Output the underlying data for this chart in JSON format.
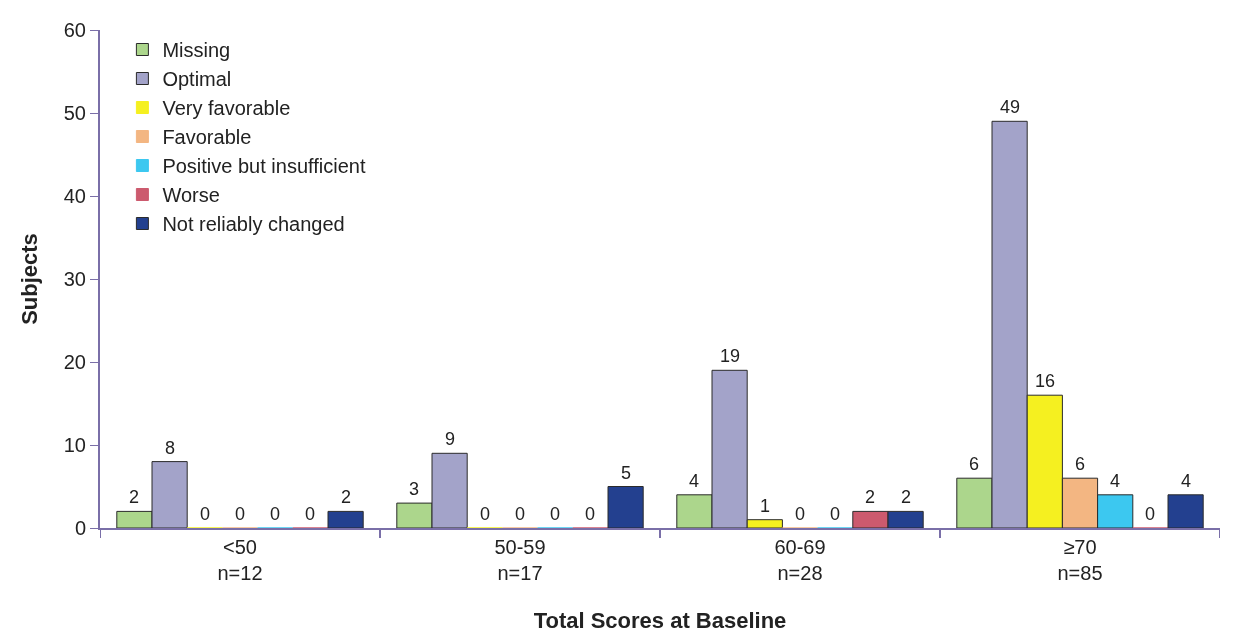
{
  "chart_data": {
    "type": "bar",
    "xlabel": "Total Scores at Baseline",
    "ylabel": "Subjects",
    "categories": [
      "<50\nn=12",
      "50-59\nn=17",
      "60-69\nn=28",
      "≥70\nn=85"
    ],
    "series": [
      {
        "name": "Missing",
        "color": "#acd68c",
        "values": [
          2,
          3,
          4,
          6
        ]
      },
      {
        "name": "Optimal",
        "color": "#a3a3c9",
        "values": [
          8,
          9,
          19,
          49
        ]
      },
      {
        "name": "Very favorable",
        "color": "#f5f020",
        "values": [
          0,
          0,
          1,
          16
        ]
      },
      {
        "name": "Favorable",
        "color": "#f3b682",
        "values": [
          0,
          0,
          0,
          6
        ]
      },
      {
        "name": "Positive but insufficient",
        "color": "#3cc8f0",
        "values": [
          0,
          0,
          0,
          4
        ]
      },
      {
        "name": "Worse",
        "color": "#cc5a6e",
        "values": [
          0,
          0,
          2,
          0
        ]
      },
      {
        "name": "Not reliably changed",
        "color": "#23408f",
        "values": [
          2,
          5,
          2,
          4
        ]
      }
    ],
    "ylim": [
      0,
      60
    ],
    "yticks": [
      0,
      10,
      20,
      30,
      40,
      50,
      60
    ],
    "grid": false,
    "legend": "top left",
    "data_labels": true
  }
}
